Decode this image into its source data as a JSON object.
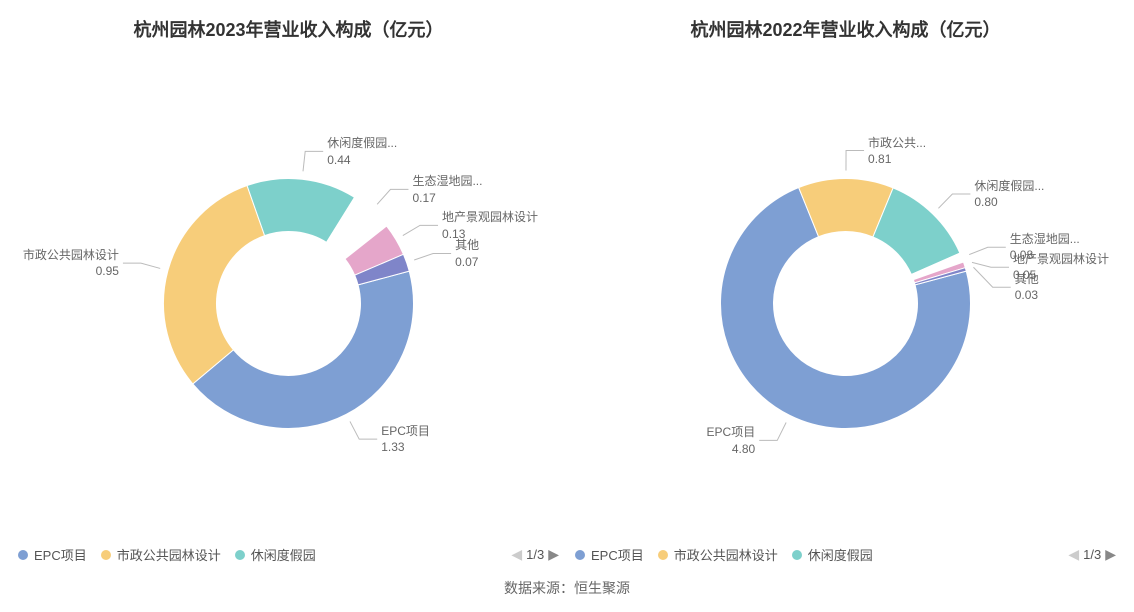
{
  "background_color": "#ffffff",
  "leader_color": "#bbbbbb",
  "label_color": "#666666",
  "title_color": "#333333",
  "title_fontsize": 18,
  "label_fontsize": 12,
  "donut": {
    "outer_radius": 125,
    "inner_radius": 72,
    "start_angle_deg": 75
  },
  "charts": [
    {
      "title": "杭州园林2023年营业收入构成（亿元）",
      "type": "donut",
      "slices": [
        {
          "name": "EPC项目",
          "value": 1.33,
          "color": "#7e9fd3",
          "label": "EPC项目",
          "value_text": "1.33"
        },
        {
          "name": "市政公共园林设计",
          "value": 0.95,
          "color": "#f7cd7a",
          "label": "市政公共园林设计",
          "value_text": "0.95"
        },
        {
          "name": "休闲度假园林设计",
          "value": 0.44,
          "color": "#7dd0cb",
          "label": "休闲度假园...",
          "value_text": "0.44"
        },
        {
          "name": "生态湿地园林设计",
          "value": 0.17,
          "color": "#ffffff",
          "label": "生态湿地园...",
          "value_text": "0.17"
        },
        {
          "name": "地产景观园林设计",
          "value": 0.13,
          "color": "#e5a6ca",
          "label": "地产景观园林设计",
          "value_text": "0.13"
        },
        {
          "name": "其他",
          "value": 0.07,
          "color": "#7f85c9",
          "label": "其他",
          "value_text": "0.07"
        }
      ],
      "legend": {
        "items": [
          {
            "label": "EPC项目",
            "color": "#7e9fd3"
          },
          {
            "label": "市政公共园林设计",
            "color": "#f7cd7a"
          },
          {
            "label": "休闲度假园",
            "color": "#7dd0cb"
          }
        ],
        "page_text": "1/3"
      }
    },
    {
      "title": "杭州园林2022年营业收入构成（亿元）",
      "type": "donut",
      "slices": [
        {
          "name": "EPC项目",
          "value": 4.8,
          "color": "#7e9fd3",
          "label": "EPC项目",
          "value_text": "4.80"
        },
        {
          "name": "市政公共园林设计",
          "value": 0.81,
          "color": "#f7cd7a",
          "label": "市政公共...",
          "value_text": "0.81"
        },
        {
          "name": "休闲度假园林设计",
          "value": 0.8,
          "color": "#7dd0cb",
          "label": "休闲度假园...",
          "value_text": "0.80"
        },
        {
          "name": "生态湿地园林设计",
          "value": 0.08,
          "color": "#ffffff",
          "label": "生态湿地园...",
          "value_text": "0.08"
        },
        {
          "name": "地产景观园林设计",
          "value": 0.05,
          "color": "#e5a6ca",
          "label": "地产景观园林设计",
          "value_text": "0.05"
        },
        {
          "name": "其他",
          "value": 0.03,
          "color": "#7f85c9",
          "label": "其他",
          "value_text": "0.03"
        }
      ],
      "legend": {
        "items": [
          {
            "label": "EPC项目",
            "color": "#7e9fd3"
          },
          {
            "label": "市政公共园林设计",
            "color": "#f7cd7a"
          },
          {
            "label": "休闲度假园",
            "color": "#7dd0cb"
          }
        ],
        "page_text": "1/3"
      }
    }
  ],
  "source_label": "数据来源：恒生聚源"
}
